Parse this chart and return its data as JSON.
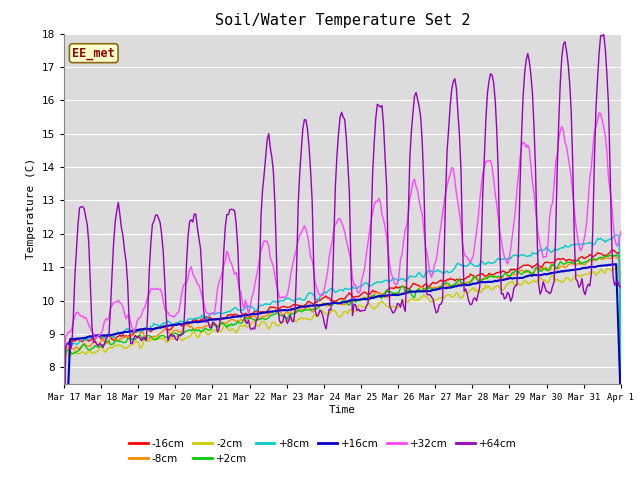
{
  "title": "Soil/Water Temperature Set 2",
  "xlabel": "Time",
  "ylabel": "Temperature (C)",
  "ylim": [
    7.5,
    18.0
  ],
  "yticks": [
    8.0,
    9.0,
    10.0,
    11.0,
    12.0,
    13.0,
    14.0,
    15.0,
    16.0,
    17.0,
    18.0
  ],
  "xtick_labels": [
    "Mar 17",
    "Mar 18",
    "Mar 19",
    "Mar 20",
    "Mar 21",
    "Mar 22",
    "Mar 23",
    "Mar 24",
    "Mar 25",
    "Mar 26",
    "Mar 27",
    "Mar 28",
    "Mar 29",
    "Mar 30",
    "Mar 31",
    "Apr 1"
  ],
  "series_order": [
    "-16cm",
    "-8cm",
    "-2cm",
    "+2cm",
    "+8cm",
    "+16cm",
    "+32cm",
    "+64cm"
  ],
  "colors": {
    "-16cm": "#ff0000",
    "-8cm": "#ff8800",
    "-2cm": "#cccc00",
    "+2cm": "#00cc00",
    "+8cm": "#00cccc",
    "+16cm": "#0000cc",
    "+32cm": "#ff44ff",
    "+64cm": "#9900bb"
  },
  "linewidths": {
    "-16cm": 1.0,
    "-8cm": 1.0,
    "-2cm": 1.0,
    "+2cm": 1.0,
    "+8cm": 1.0,
    "+16cm": 1.5,
    "+32cm": 1.0,
    "+64cm": 1.0
  },
  "annotation_text": "EE_met",
  "plot_bg": "#dcdcdc",
  "grid_color": "#ffffff",
  "fig_bg": "#ffffff"
}
